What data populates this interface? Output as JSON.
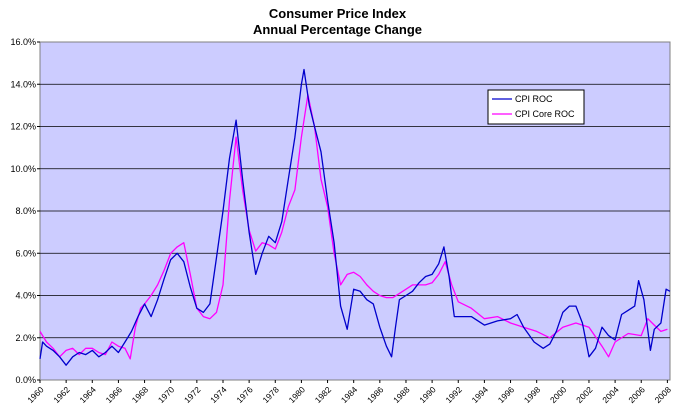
{
  "chart_data": {
    "type": "line",
    "title": "Consumer Price Index",
    "subtitle": "Annual Percentage Change",
    "xlabel": "",
    "ylabel": "",
    "xlim": [
      1960,
      2008.2
    ],
    "ylim": [
      0,
      16
    ],
    "grid": "horizontal",
    "legend_position": "top-right",
    "y_ticks": [
      "0.0%",
      "2.0%",
      "4.0%",
      "6.0%",
      "8.0%",
      "10.0%",
      "12.0%",
      "14.0%",
      "16.0%"
    ],
    "x_ticks": [
      "1960",
      "1962",
      "1964",
      "1966",
      "1968",
      "1970",
      "1972",
      "1974",
      "1976",
      "1978",
      "1980",
      "1982",
      "1984",
      "1986",
      "1988",
      "1990",
      "1992",
      "1994",
      "1996",
      "1998",
      "2000",
      "2002",
      "2004",
      "2006",
      "2008"
    ],
    "plot_background": "#ccccff",
    "series": [
      {
        "name": "CPI ROC",
        "color": "#0000cc",
        "points": [
          [
            1960.0,
            1.0
          ],
          [
            1960.2,
            1.8
          ],
          [
            1960.5,
            1.6
          ],
          [
            1961.0,
            1.4
          ],
          [
            1961.5,
            1.1
          ],
          [
            1962.0,
            0.7
          ],
          [
            1962.5,
            1.1
          ],
          [
            1963.0,
            1.3
          ],
          [
            1963.5,
            1.2
          ],
          [
            1964.0,
            1.4
          ],
          [
            1964.5,
            1.1
          ],
          [
            1965.0,
            1.3
          ],
          [
            1965.5,
            1.6
          ],
          [
            1966.0,
            1.3
          ],
          [
            1966.5,
            1.8
          ],
          [
            1967.0,
            2.3
          ],
          [
            1967.5,
            3.0
          ],
          [
            1968.0,
            3.6
          ],
          [
            1968.5,
            3.0
          ],
          [
            1969.0,
            3.8
          ],
          [
            1969.5,
            4.8
          ],
          [
            1970.0,
            5.7
          ],
          [
            1970.5,
            6.0
          ],
          [
            1971.0,
            5.6
          ],
          [
            1971.5,
            4.4
          ],
          [
            1972.0,
            3.4
          ],
          [
            1972.5,
            3.2
          ],
          [
            1973.0,
            3.6
          ],
          [
            1973.5,
            5.8
          ],
          [
            1974.0,
            8.0
          ],
          [
            1974.5,
            10.5
          ],
          [
            1975.0,
            12.3
          ],
          [
            1975.5,
            9.5
          ],
          [
            1976.0,
            7.0
          ],
          [
            1976.5,
            5.0
          ],
          [
            1977.0,
            6.0
          ],
          [
            1977.5,
            6.8
          ],
          [
            1978.0,
            6.5
          ],
          [
            1978.5,
            7.5
          ],
          [
            1979.0,
            9.5
          ],
          [
            1979.5,
            11.5
          ],
          [
            1980.0,
            14.0
          ],
          [
            1980.2,
            14.7
          ],
          [
            1980.6,
            13.0
          ],
          [
            1981.0,
            12.0
          ],
          [
            1981.5,
            10.8
          ],
          [
            1982.0,
            8.5
          ],
          [
            1982.5,
            6.5
          ],
          [
            1983.0,
            3.5
          ],
          [
            1983.5,
            2.4
          ],
          [
            1984.0,
            4.3
          ],
          [
            1984.5,
            4.2
          ],
          [
            1985.0,
            3.8
          ],
          [
            1985.5,
            3.6
          ],
          [
            1986.0,
            2.5
          ],
          [
            1986.5,
            1.6
          ],
          [
            1986.9,
            1.1
          ],
          [
            1987.2,
            2.5
          ],
          [
            1987.5,
            3.8
          ],
          [
            1988.0,
            4.0
          ],
          [
            1988.5,
            4.2
          ],
          [
            1989.0,
            4.6
          ],
          [
            1989.5,
            4.9
          ],
          [
            1990.0,
            5.0
          ],
          [
            1990.5,
            5.5
          ],
          [
            1990.9,
            6.3
          ],
          [
            1991.3,
            4.9
          ],
          [
            1991.7,
            3.0
          ],
          [
            1992.0,
            3.0
          ],
          [
            1993.0,
            3.0
          ],
          [
            1994.0,
            2.6
          ],
          [
            1995.0,
            2.8
          ],
          [
            1996.0,
            2.9
          ],
          [
            1996.5,
            3.1
          ],
          [
            1997.0,
            2.5
          ],
          [
            1997.8,
            1.8
          ],
          [
            1998.5,
            1.5
          ],
          [
            1999.0,
            1.7
          ],
          [
            1999.5,
            2.3
          ],
          [
            2000.0,
            3.2
          ],
          [
            2000.5,
            3.5
          ],
          [
            2001.0,
            3.5
          ],
          [
            2001.5,
            2.7
          ],
          [
            2002.0,
            1.1
          ],
          [
            2002.5,
            1.5
          ],
          [
            2003.0,
            2.5
          ],
          [
            2003.5,
            2.1
          ],
          [
            2004.0,
            1.9
          ],
          [
            2004.5,
            3.1
          ],
          [
            2005.0,
            3.3
          ],
          [
            2005.5,
            3.5
          ],
          [
            2005.8,
            4.7
          ],
          [
            2006.2,
            3.8
          ],
          [
            2006.7,
            1.4
          ],
          [
            2007.0,
            2.4
          ],
          [
            2007.5,
            2.7
          ],
          [
            2007.9,
            4.3
          ],
          [
            2008.2,
            4.2
          ]
        ]
      },
      {
        "name": "CPI Core ROC",
        "color": "#ff00ff",
        "points": [
          [
            1960.0,
            2.3
          ],
          [
            1960.5,
            1.8
          ],
          [
            1961.0,
            1.5
          ],
          [
            1961.5,
            1.1
          ],
          [
            1962.0,
            1.4
          ],
          [
            1962.5,
            1.5
          ],
          [
            1963.0,
            1.2
          ],
          [
            1963.5,
            1.5
          ],
          [
            1964.0,
            1.5
          ],
          [
            1964.5,
            1.3
          ],
          [
            1965.0,
            1.2
          ],
          [
            1965.5,
            1.8
          ],
          [
            1966.0,
            1.6
          ],
          [
            1966.5,
            1.5
          ],
          [
            1966.9,
            1.0
          ],
          [
            1967.3,
            2.5
          ],
          [
            1967.7,
            3.4
          ],
          [
            1968.0,
            3.6
          ],
          [
            1968.5,
            4.0
          ],
          [
            1969.0,
            4.5
          ],
          [
            1969.5,
            5.2
          ],
          [
            1970.0,
            6.0
          ],
          [
            1970.5,
            6.3
          ],
          [
            1971.0,
            6.5
          ],
          [
            1971.5,
            5.0
          ],
          [
            1972.0,
            3.4
          ],
          [
            1972.5,
            3.0
          ],
          [
            1973.0,
            2.9
          ],
          [
            1973.5,
            3.2
          ],
          [
            1974.0,
            4.5
          ],
          [
            1974.5,
            8.5
          ],
          [
            1975.0,
            11.5
          ],
          [
            1975.5,
            9.0
          ],
          [
            1976.0,
            7.1
          ],
          [
            1976.5,
            6.1
          ],
          [
            1977.0,
            6.5
          ],
          [
            1977.5,
            6.4
          ],
          [
            1978.0,
            6.2
          ],
          [
            1978.5,
            7.0
          ],
          [
            1979.0,
            8.2
          ],
          [
            1979.5,
            9.0
          ],
          [
            1980.0,
            11.5
          ],
          [
            1980.5,
            13.5
          ],
          [
            1981.0,
            12.0
          ],
          [
            1981.5,
            9.5
          ],
          [
            1982.0,
            8.2
          ],
          [
            1982.5,
            6.0
          ],
          [
            1983.0,
            4.5
          ],
          [
            1983.5,
            5.0
          ],
          [
            1984.0,
            5.1
          ],
          [
            1984.5,
            4.9
          ],
          [
            1985.0,
            4.5
          ],
          [
            1985.5,
            4.2
          ],
          [
            1986.0,
            4.0
          ],
          [
            1986.5,
            3.9
          ],
          [
            1987.0,
            3.9
          ],
          [
            1987.5,
            4.1
          ],
          [
            1988.0,
            4.3
          ],
          [
            1988.5,
            4.5
          ],
          [
            1989.0,
            4.5
          ],
          [
            1989.5,
            4.5
          ],
          [
            1990.0,
            4.6
          ],
          [
            1990.5,
            5.0
          ],
          [
            1991.0,
            5.6
          ],
          [
            1991.5,
            4.5
          ],
          [
            1992.0,
            3.7
          ],
          [
            1993.0,
            3.4
          ],
          [
            1994.0,
            2.9
          ],
          [
            1995.0,
            3.0
          ],
          [
            1996.0,
            2.7
          ],
          [
            1997.0,
            2.5
          ],
          [
            1998.0,
            2.3
          ],
          [
            1999.0,
            2.0
          ],
          [
            2000.0,
            2.5
          ],
          [
            2001.0,
            2.7
          ],
          [
            2002.0,
            2.5
          ],
          [
            2003.0,
            1.6
          ],
          [
            2003.5,
            1.1
          ],
          [
            2004.0,
            1.8
          ],
          [
            2005.0,
            2.2
          ],
          [
            2006.0,
            2.1
          ],
          [
            2006.5,
            2.9
          ],
          [
            2007.0,
            2.6
          ],
          [
            2007.5,
            2.3
          ],
          [
            2008.0,
            2.4
          ]
        ]
      }
    ]
  }
}
